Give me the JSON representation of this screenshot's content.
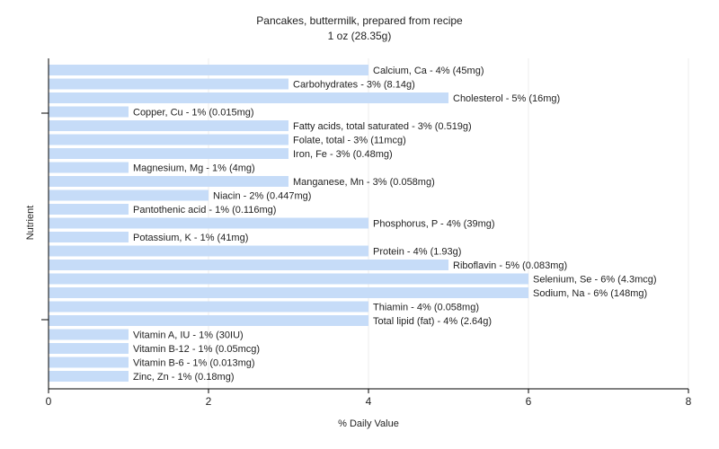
{
  "chart_data": {
    "type": "bar",
    "orientation": "horizontal",
    "title": "Pancakes, buttermilk, prepared from recipe",
    "subtitle": "1 oz (28.35g)",
    "xlabel": "% Daily Value",
    "ylabel": "Nutrient",
    "xlim": [
      0,
      8
    ],
    "xticks": [
      0,
      2,
      4,
      6,
      8
    ],
    "grid": true,
    "bar_color": "#c6dcf8",
    "categories": [
      "Calcium, Ca",
      "Carbohydrates",
      "Cholesterol",
      "Copper, Cu",
      "Fatty acids, total saturated",
      "Folate, total",
      "Iron, Fe",
      "Magnesium, Mg",
      "Manganese, Mn",
      "Niacin",
      "Pantothenic acid",
      "Phosphorus, P",
      "Potassium, K",
      "Protein",
      "Riboflavin",
      "Selenium, Se",
      "Sodium, Na",
      "Thiamin",
      "Total lipid (fat)",
      "Vitamin A, IU",
      "Vitamin B-12",
      "Vitamin B-6",
      "Zinc, Zn"
    ],
    "values": [
      4,
      3,
      5,
      1,
      3,
      3,
      3,
      1,
      3,
      2,
      1,
      4,
      1,
      4,
      5,
      6,
      6,
      4,
      4,
      1,
      1,
      1,
      1
    ],
    "labels": [
      "Calcium, Ca - 4% (45mg)",
      "Carbohydrates - 3% (8.14g)",
      "Cholesterol - 5% (16mg)",
      "Copper, Cu - 1% (0.015mg)",
      "Fatty acids, total saturated - 3% (0.519g)",
      "Folate, total - 3% (11mcg)",
      "Iron, Fe - 3% (0.48mg)",
      "Magnesium, Mg - 1% (4mg)",
      "Manganese, Mn - 3% (0.058mg)",
      "Niacin - 2% (0.447mg)",
      "Pantothenic acid - 1% (0.116mg)",
      "Phosphorus, P - 4% (39mg)",
      "Potassium, K - 1% (41mg)",
      "Protein - 4% (1.93g)",
      "Riboflavin - 5% (0.083mg)",
      "Selenium, Se - 6% (4.3mcg)",
      "Sodium, Na - 6% (148mg)",
      "Thiamin - 4% (0.058mg)",
      "Total lipid (fat) - 4% (2.64g)",
      "Vitamin A, IU - 1% (30IU)",
      "Vitamin B-12 - 1% (0.05mcg)",
      "Vitamin B-6 - 1% (0.013mg)",
      "Zinc, Zn - 1% (0.18mg)"
    ]
  }
}
